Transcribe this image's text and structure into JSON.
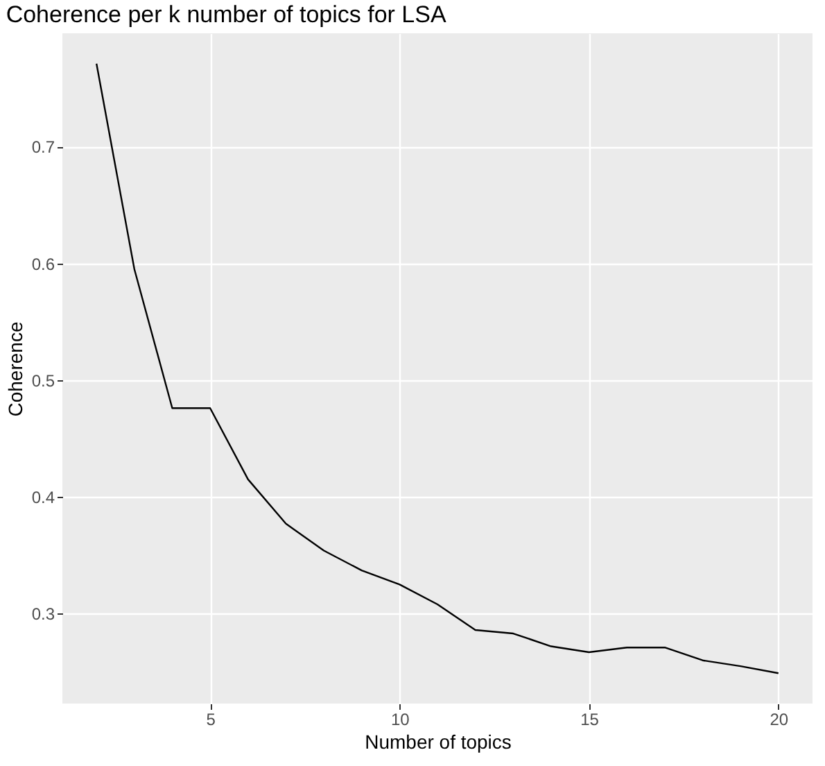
{
  "chart_data": {
    "type": "line",
    "title": "Coherence per k number of topics for LSA",
    "xlabel": "Number of topics",
    "ylabel": "Coherence",
    "x": [
      2,
      3,
      4,
      5,
      6,
      7,
      8,
      9,
      10,
      11,
      12,
      13,
      14,
      15,
      16,
      17,
      18,
      19,
      20
    ],
    "series": [
      {
        "color": "#000000",
        "values": [
          0.771,
          0.595,
          0.476,
          0.476,
          0.415,
          0.377,
          0.354,
          0.337,
          0.325,
          0.308,
          0.286,
          0.283,
          0.272,
          0.267,
          0.271,
          0.271,
          0.26,
          0.255,
          0.249
        ]
      }
    ],
    "xlim": [
      1.1,
      20.9
    ],
    "ylim": [
      0.223,
      0.797
    ],
    "xticks": [
      5,
      10,
      15,
      20
    ],
    "yticks": [
      0.3,
      0.4,
      0.5,
      0.6,
      0.7
    ],
    "grid": true,
    "marker": "none",
    "line_style": "solid"
  }
}
